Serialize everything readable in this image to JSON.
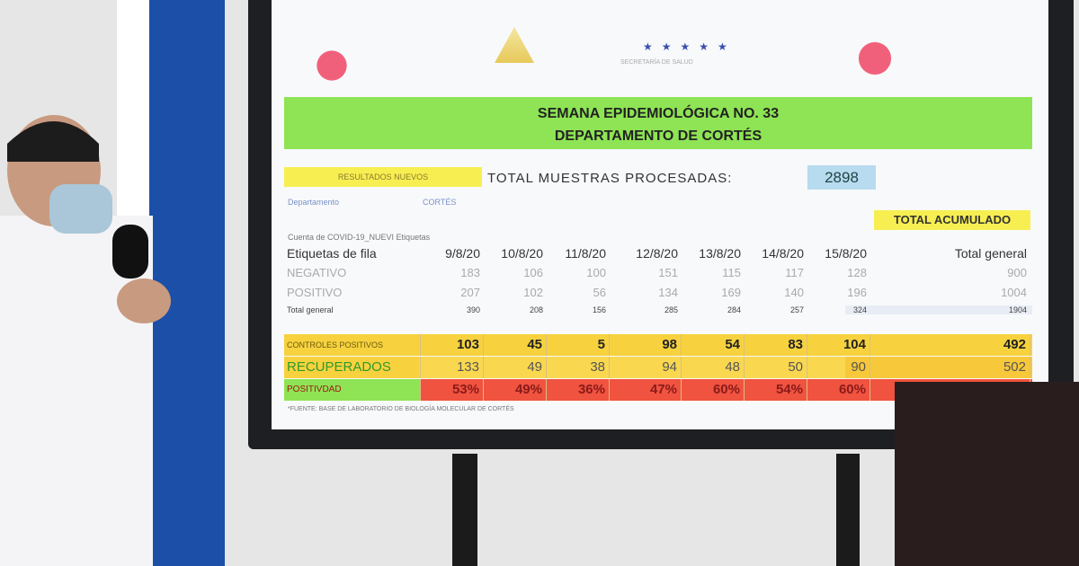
{
  "screen": {
    "title_line1": "SEMANA EPIDEMIOLÓGICA NO. 33",
    "title_line2": "DEPARTAMENTO DE CORTÉS",
    "resultados_label": "RESULTADOS NUEVOS",
    "total_muestras_label": "TOTAL MUESTRAS PROCESADAS:",
    "total_muestras_value": "2898",
    "filter_label": "Departamento",
    "filter_value": "CORTÉS",
    "total_acumulado_label": "TOTAL ACUMULADO",
    "pivot_label": "Cuenta de COVID-19_NUEVI Etiquetas",
    "headers": [
      "Etiquetas de fila",
      "9/8/20",
      "10/8/20",
      "11/8/20",
      "12/8/20",
      "13/8/20",
      "14/8/20",
      "15/8/20",
      "Total general"
    ],
    "rows": [
      {
        "label": "NEGATIVO",
        "values": [
          "183",
          "106",
          "100",
          "151",
          "115",
          "117",
          "128",
          "900"
        ]
      },
      {
        "label": "POSITIVO",
        "values": [
          "207",
          "102",
          "56",
          "134",
          "169",
          "140",
          "196",
          "1004"
        ]
      },
      {
        "label": "Total general",
        "values": [
          "390",
          "208",
          "156",
          "285",
          "284",
          "257",
          "324",
          "1904"
        ]
      }
    ],
    "summary": [
      {
        "label": "CONTROLES POSITIVOS",
        "values": [
          "103",
          "45",
          "5",
          "98",
          "54",
          "83",
          "104",
          "492"
        ],
        "color": "#f7d23e"
      },
      {
        "label": "RECUPERADOS",
        "values": [
          "133",
          "49",
          "38",
          "94",
          "48",
          "50",
          "90",
          "502"
        ],
        "color": "#e6f5e0"
      },
      {
        "label": "POSITIVDAD",
        "values": [
          "53%",
          "49%",
          "36%",
          "47%",
          "60%",
          "54%",
          "60%",
          ""
        ],
        "color": "#f0533f"
      }
    ],
    "source": "*FUENTE: BASE DE LABORATORIO DE BIOLOGÍA MOLECULAR DE CORTÉS",
    "ministry_label": "SECRETARÍA DE SALUD"
  }
}
